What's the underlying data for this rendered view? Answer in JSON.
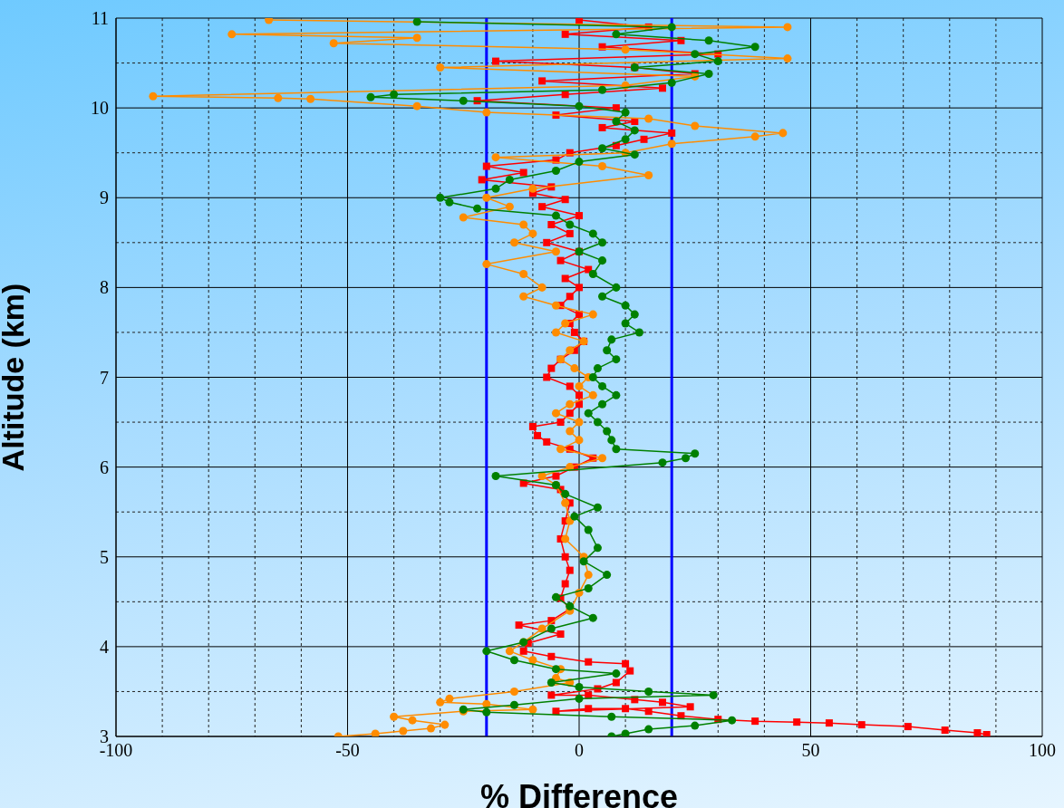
{
  "chart_data": {
    "type": "line",
    "xlabel": "% Difference",
    "ylabel": "Altitude (km)",
    "xlim": [
      -100,
      100
    ],
    "xticks": [
      -100,
      {
        "value": -90,
        "label": null
      },
      {
        "value": -80,
        "label": null
      },
      {
        "value": -70,
        "label": null
      },
      {
        "value": -60,
        "label": null
      },
      -50,
      {
        "value": -40,
        "label": null
      },
      {
        "value": -30,
        "label": null
      },
      {
        "value": -10,
        "label": null
      },
      0,
      {
        "value": 10,
        "label": null
      },
      {
        "value": 30,
        "label": null
      },
      {
        "value": 40,
        "label": null
      },
      50,
      {
        "value": 60,
        "label": null
      },
      {
        "value": 70,
        "label": null
      },
      {
        "value": 80,
        "label": null
      },
      {
        "value": 90,
        "label": null
      },
      100
    ],
    "ylim": [
      3,
      11
    ],
    "yticks": [
      3,
      {
        "value": 3.5,
        "label": null
      },
      4,
      {
        "value": 4.5,
        "label": null
      },
      5,
      {
        "value": 5.5,
        "label": null
      },
      6,
      {
        "value": 6.5,
        "label": null
      },
      7,
      {
        "value": 7.5,
        "label": null
      },
      8,
      {
        "value": 8.5,
        "label": null
      },
      9,
      {
        "value": 9.5,
        "label": null
      },
      10,
      {
        "value": 10.5,
        "label": null
      },
      11
    ],
    "grid": true,
    "ref_lines": [
      {
        "axis": "x",
        "value": -20,
        "color": "#0000ff"
      },
      {
        "axis": "x",
        "value": 20,
        "color": "#0000ff"
      }
    ],
    "series": [
      {
        "color": "#ff0000",
        "marker": "square",
        "values": [
          10.98,
          10.9,
          10.82,
          10.75,
          10.68,
          10.6,
          10.52,
          10.45,
          10.38,
          10.3,
          10.22,
          10.15,
          10.08,
          10.0,
          9.92,
          9.85,
          9.78,
          9.72,
          9.65,
          9.58,
          9.5,
          9.42,
          9.35,
          9.28,
          9.2,
          9.12,
          9.05,
          8.98,
          8.9,
          8.8,
          8.7,
          8.6,
          8.5,
          8.4,
          8.3,
          8.2,
          8.1,
          8.0,
          7.9,
          7.8,
          7.7,
          7.6,
          7.5,
          7.4,
          7.3,
          7.2,
          7.1,
          7.0,
          6.9,
          6.8,
          6.7,
          6.6,
          6.5,
          6.45,
          6.35,
          6.28,
          6.2,
          6.1,
          6.0,
          5.9,
          5.82,
          5.75,
          5.6,
          5.4,
          5.2,
          5.0,
          4.85,
          4.7,
          4.54,
          4.42,
          4.29,
          4.24,
          4.14,
          4.04,
          3.95,
          3.89,
          3.83,
          3.81,
          3.73,
          3.6,
          3.53,
          3.46,
          3.46,
          3.41,
          3.38,
          3.33,
          3.28,
          3.31,
          3.31,
          3.28,
          3.23,
          3.19,
          3.17,
          3.16,
          3.15,
          3.13,
          3.11,
          3.07,
          3.04,
          3.02
        ],
        "x": [
          0,
          15,
          -3,
          22,
          5,
          30,
          -18,
          12,
          25,
          -8,
          18,
          -3,
          -22,
          8,
          -5,
          12,
          5,
          20,
          14,
          8,
          -2,
          -5,
          -20,
          -12,
          -21,
          -6,
          -10,
          -3,
          -8,
          0,
          -6,
          -2,
          -7,
          0,
          -4,
          2,
          -3,
          0,
          -2,
          -4,
          0,
          -2,
          -1,
          1,
          -1,
          -4,
          -6,
          -7,
          -2,
          0,
          0,
          -2,
          -4,
          -10,
          -9,
          -7,
          -2,
          3,
          -1,
          -5,
          -12,
          -4,
          -2,
          -3,
          -4,
          -3,
          -2,
          -3,
          -4,
          -2,
          -6,
          -13,
          -4,
          -11,
          -12,
          -6,
          2,
          10,
          11,
          8,
          4,
          -6,
          2,
          12,
          18,
          24,
          -5,
          2,
          10,
          15,
          22,
          30,
          38,
          47,
          54,
          61,
          71,
          79,
          86,
          88
        ]
      },
      {
        "color": "#ff8c00",
        "marker": "circle",
        "values": [
          10.98,
          10.9,
          10.82,
          10.78,
          10.72,
          10.65,
          10.55,
          10.45,
          10.35,
          10.25,
          10.13,
          10.11,
          10.1,
          10.02,
          9.95,
          9.88,
          9.8,
          9.72,
          9.68,
          9.6,
          9.5,
          9.45,
          9.35,
          9.25,
          9.1,
          9.0,
          8.9,
          8.78,
          8.7,
          8.6,
          8.5,
          8.4,
          8.26,
          8.15,
          8.0,
          7.9,
          7.8,
          7.7,
          7.6,
          7.5,
          7.4,
          7.3,
          7.2,
          7.1,
          7.0,
          6.9,
          6.8,
          6.7,
          6.6,
          6.5,
          6.4,
          6.3,
          6.2,
          6.1,
          6.0,
          5.9,
          5.8,
          5.6,
          5.4,
          5.2,
          5.0,
          4.8,
          4.6,
          4.4,
          4.2,
          4.05,
          3.95,
          3.85,
          3.75,
          3.65,
          3.6,
          3.5,
          3.42,
          3.38,
          3.36,
          3.3,
          3.28,
          3.22,
          3.18,
          3.13,
          3.09,
          3.06,
          3.03,
          3.0
        ],
        "x": [
          -67,
          45,
          -75,
          -35,
          -53,
          10,
          45,
          -30,
          25,
          10,
          -92,
          -65,
          -58,
          -35,
          -20,
          15,
          25,
          44,
          38,
          20,
          10,
          -18,
          5,
          15,
          -10,
          -20,
          -15,
          -25,
          -12,
          -10,
          -14,
          -5,
          -20,
          -12,
          -8,
          -12,
          -5,
          3,
          -3,
          -5,
          1,
          -2,
          -4,
          -1,
          2,
          0,
          3,
          -2,
          -5,
          0,
          -2,
          0,
          -4,
          5,
          -2,
          -8,
          -5,
          -3,
          -2,
          -3,
          1,
          2,
          0,
          -2,
          -8,
          -12,
          -15,
          -10,
          -4,
          -5,
          -2,
          -14,
          -28,
          -30,
          -20,
          -10,
          -25,
          -40,
          -36,
          -29,
          -32,
          -38,
          -44,
          -52
        ]
      },
      {
        "color": "#008000",
        "marker": "circle",
        "values": [
          10.96,
          10.9,
          10.82,
          10.75,
          10.68,
          10.6,
          10.52,
          10.45,
          10.38,
          10.28,
          10.2,
          10.15,
          10.12,
          10.08,
          10.02,
          9.95,
          9.85,
          9.75,
          9.65,
          9.55,
          9.48,
          9.4,
          9.3,
          9.2,
          9.1,
          9.0,
          8.95,
          8.88,
          8.8,
          8.7,
          8.6,
          8.5,
          8.4,
          8.3,
          8.15,
          8.0,
          7.9,
          7.8,
          7.7,
          7.6,
          7.5,
          7.42,
          7.3,
          7.2,
          7.1,
          7.0,
          6.9,
          6.8,
          6.7,
          6.6,
          6.5,
          6.4,
          6.3,
          6.2,
          6.15,
          6.1,
          6.05,
          5.9,
          5.8,
          5.7,
          5.55,
          5.45,
          5.3,
          5.1,
          4.95,
          4.8,
          4.65,
          4.55,
          4.45,
          4.32,
          4.2,
          4.05,
          3.95,
          3.85,
          3.75,
          3.7,
          3.6,
          3.55,
          3.5,
          3.46,
          3.42,
          3.35,
          3.3,
          3.27,
          3.22,
          3.18,
          3.12,
          3.08,
          3.03,
          3.0
        ],
        "x": [
          -35,
          20,
          8,
          28,
          38,
          25,
          30,
          12,
          28,
          20,
          5,
          -40,
          -45,
          -25,
          0,
          10,
          8,
          12,
          10,
          5,
          12,
          0,
          -5,
          -15,
          -18,
          -30,
          -28,
          -22,
          -5,
          -2,
          3,
          5,
          0,
          5,
          3,
          8,
          5,
          10,
          12,
          10,
          13,
          7,
          6,
          8,
          4,
          3,
          5,
          8,
          5,
          2,
          4,
          6,
          7,
          8,
          25,
          23,
          18,
          -18,
          -5,
          -3,
          4,
          -1,
          2,
          4,
          1,
          6,
          2,
          -5,
          -2,
          3,
          -6,
          -12,
          -20,
          -14,
          -5,
          8,
          -6,
          0,
          15,
          29,
          0,
          -14,
          -25,
          -20,
          7,
          33,
          25,
          15,
          10,
          7
        ]
      }
    ]
  }
}
